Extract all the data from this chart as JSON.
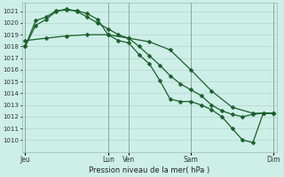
{
  "bg_color": "#ceeee8",
  "grid_color": "#b0d8cc",
  "line_color": "#1a5e2a",
  "xlabel": "Pression niveau de la mer( hPa )",
  "ylim": [
    1009.0,
    1021.7
  ],
  "yticks": [
    1010,
    1011,
    1012,
    1013,
    1014,
    1015,
    1016,
    1017,
    1018,
    1019,
    1020,
    1021
  ],
  "xlim": [
    -0.3,
    24.3
  ],
  "xtick_labels": [
    "Jeu",
    "Lun",
    "Ven",
    "Sam",
    "Dim"
  ],
  "xtick_positions": [
    0,
    8,
    10,
    16,
    24
  ],
  "vlines": [
    0,
    8,
    10,
    16,
    24
  ],
  "line1_x": [
    0,
    1,
    2,
    3,
    4,
    5,
    6,
    7,
    8,
    9,
    10,
    11,
    12,
    13,
    14,
    15,
    16,
    17,
    18,
    19,
    20,
    21,
    22,
    23,
    24
  ],
  "line1_y": [
    1018.0,
    1020.2,
    1020.5,
    1021.05,
    1021.1,
    1021.05,
    1020.8,
    1020.3,
    1019.0,
    1018.5,
    1018.3,
    1017.3,
    1016.5,
    1015.1,
    1013.5,
    1013.3,
    1013.3,
    1013.0,
    1012.6,
    1012.0,
    1011.0,
    1010.0,
    1009.8,
    1012.3,
    1012.3
  ],
  "line2_x": [
    0,
    1,
    2,
    3,
    4,
    5,
    6,
    7,
    8,
    9,
    10,
    11,
    12,
    13,
    14,
    15,
    16,
    17,
    18,
    19,
    20,
    21,
    22,
    23,
    24
  ],
  "line2_y": [
    1018.0,
    1019.8,
    1020.3,
    1021.0,
    1021.2,
    1021.0,
    1020.5,
    1020.0,
    1019.5,
    1019.0,
    1018.7,
    1018.0,
    1017.2,
    1016.4,
    1015.5,
    1014.8,
    1014.3,
    1013.8,
    1013.0,
    1012.5,
    1012.2,
    1012.0,
    1012.2,
    1012.3,
    1012.3
  ],
  "line3_x": [
    0,
    2,
    4,
    6,
    8,
    10,
    12,
    14,
    16,
    18,
    20,
    22,
    24
  ],
  "line3_y": [
    1018.5,
    1018.7,
    1018.9,
    1019.0,
    1019.0,
    1018.7,
    1018.4,
    1017.7,
    1016.0,
    1014.2,
    1012.8,
    1012.3,
    1012.3
  ]
}
